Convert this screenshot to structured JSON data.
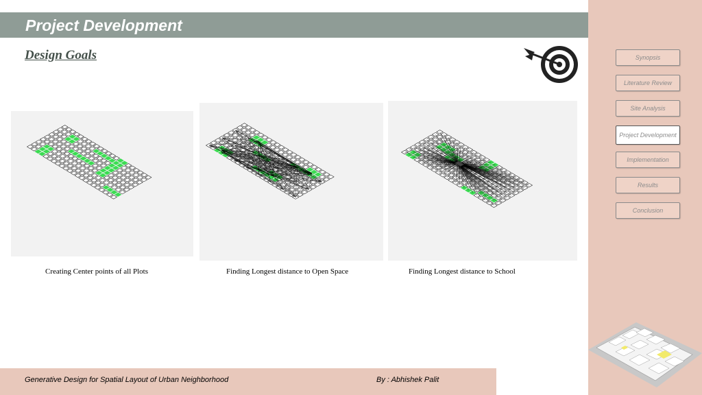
{
  "header": {
    "title": "Project Development"
  },
  "section": {
    "heading": "Design Goals"
  },
  "nav": {
    "items": [
      {
        "label": "Synopsis"
      },
      {
        "label": "Literature Review"
      },
      {
        "label": "Site Analysis"
      },
      {
        "label": "Project Development",
        "active": true
      },
      {
        "label": "Implementation"
      },
      {
        "label": "Results"
      },
      {
        "label": "Conclusion"
      }
    ]
  },
  "figures": [
    {
      "caption": "Creating Center points of all Plots"
    },
    {
      "caption": "Finding Longest distance to Open Space"
    },
    {
      "caption": "Finding Longest distance to School"
    }
  ],
  "footer": {
    "project": "Generative Design for Spatial Layout of Urban Neighborhood",
    "author": "By : Abhishek Palit"
  },
  "colors": {
    "accent": "#8f9c96",
    "sidebar": "#e8c8bb",
    "green": "#3bdc52"
  },
  "icons": [
    "target-icon"
  ]
}
